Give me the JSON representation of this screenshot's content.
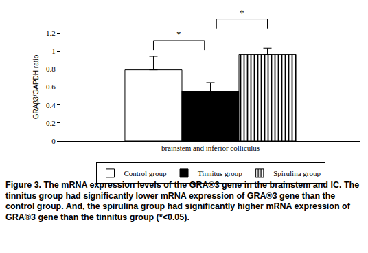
{
  "chart_data": {
    "type": "bar",
    "categories": [
      "brainstem and inferior colliculus"
    ],
    "series": [
      {
        "name": "Control group",
        "color": "#ffffff",
        "marker": "solid",
        "values": [
          0.79
        ],
        "error": [
          0.15
        ]
      },
      {
        "name": "Tinnitus group",
        "color": "#000000",
        "marker": "solid",
        "values": [
          0.55
        ],
        "error": [
          0.1
        ]
      },
      {
        "name": "Spirulina group",
        "color": "#ffffff",
        "marker": "striped",
        "values": [
          0.96
        ],
        "error": [
          0.07
        ]
      }
    ],
    "ylabel": "GRAβ3/GAPDH ratio",
    "ylim": [
      0,
      1.2
    ],
    "yticks": [
      0,
      0.2,
      0.4,
      0.6,
      0.8,
      1,
      1.2
    ],
    "grid": false,
    "legend": "bottom",
    "significance": [
      {
        "between": [
          "Control group",
          "Tinnitus group"
        ],
        "label": "*"
      },
      {
        "between": [
          "Tinnitus group",
          "Spirulina group"
        ],
        "label": "*"
      }
    ],
    "caption": "Figure 3. The mRNA expression levels of the GRA®3 gene in the brainstem and IC. The tinnitus group had significantly lower mRNA expression of GRA®3 gene than the control group. And, the spirulina group had significantly higher mRNA expression of GRA®3 gene than the tinnitus group (*<0.05)."
  }
}
